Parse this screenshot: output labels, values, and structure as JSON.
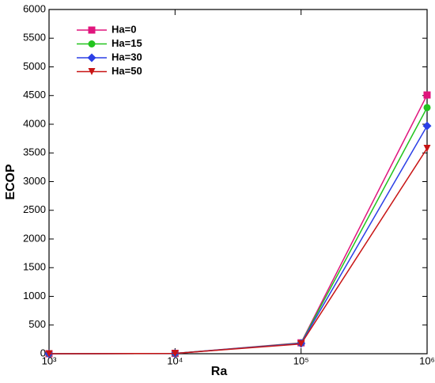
{
  "chart_data": {
    "type": "line",
    "x_label": "Ra",
    "y_label": "ECOP",
    "x": [
      1000,
      10000,
      100000,
      1000000
    ],
    "series": [
      {
        "name": "Ha=0",
        "color": "#e0157d",
        "marker": "square",
        "values": [
          0,
          5,
          190,
          4510
        ]
      },
      {
        "name": "Ha=15",
        "color": "#22c41e",
        "marker": "circle",
        "values": [
          0,
          5,
          185,
          4290
        ]
      },
      {
        "name": "Ha=30",
        "color": "#2b3fe6",
        "marker": "diamond",
        "values": [
          0,
          5,
          180,
          3970
        ]
      },
      {
        "name": "Ha=50",
        "color": "#c81414",
        "marker": "triangle-down",
        "values": [
          0,
          5,
          170,
          3580
        ]
      }
    ],
    "xlog": true,
    "xlim": [
      1000,
      1000000
    ],
    "xticks": [
      {
        "value": 1000,
        "label": "10³"
      },
      {
        "value": 10000,
        "label": "10⁴"
      },
      {
        "value": 100000,
        "label": "10⁵"
      },
      {
        "value": 1000000,
        "label": "10⁶"
      }
    ],
    "ylim": [
      0,
      6000
    ],
    "yticks": [
      0,
      500,
      1000,
      1500,
      2000,
      2500,
      3000,
      3500,
      4000,
      4500,
      5000,
      5500,
      6000
    ],
    "legend": "upper-left"
  }
}
